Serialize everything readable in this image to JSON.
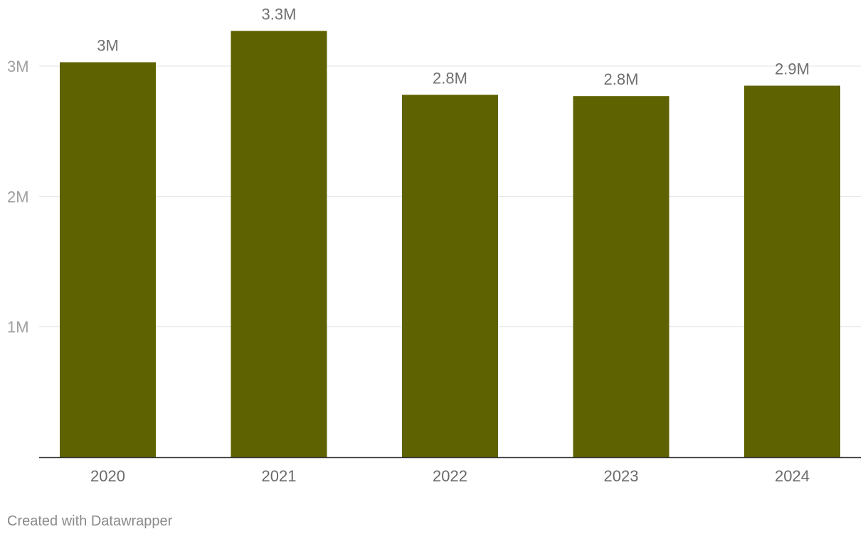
{
  "chart_data": {
    "type": "bar",
    "categories": [
      "2020",
      "2021",
      "2022",
      "2023",
      "2024"
    ],
    "values": [
      3030000,
      3270000,
      2780000,
      2770000,
      2850000
    ],
    "value_labels": [
      "3M",
      "3.3M",
      "2.8M",
      "2.8M",
      "2.9M"
    ],
    "yticks": [
      1000000,
      2000000,
      3000000
    ],
    "ytick_labels": [
      "1M",
      "2M",
      "3M"
    ],
    "ylim": [
      0,
      3000000
    ],
    "grid": true,
    "bar_color": "#5e6200",
    "title": "",
    "xlabel": "",
    "ylabel": ""
  },
  "footer": {
    "credit": "Created with Datawrapper"
  }
}
